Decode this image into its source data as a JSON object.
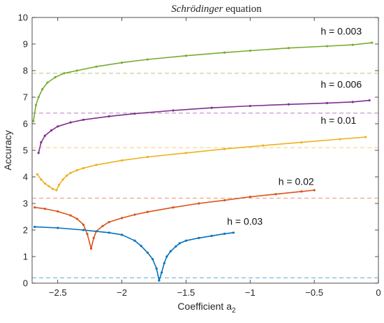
{
  "chart_data": {
    "type": "scatter",
    "title": {
      "italic": "Schrödinger",
      "rest": " equation"
    },
    "xlabel": {
      "main": "Coefficient a",
      "sub": "2"
    },
    "ylabel": "Accuracy",
    "xlim": [
      -2.7,
      0
    ],
    "ylim": [
      0,
      10
    ],
    "xticks": [
      -2.5,
      -2,
      -1.5,
      -1,
      -0.5,
      0
    ],
    "xtick_labels": [
      "−2.5",
      "−2",
      "−1.5",
      "−1",
      "−0.5",
      "0"
    ],
    "yticks": [
      0,
      1,
      2,
      3,
      4,
      5,
      6,
      7,
      8,
      9,
      10
    ],
    "ytick_labels": [
      "0",
      "1",
      "2",
      "3",
      "4",
      "5",
      "6",
      "7",
      "8",
      "9",
      "10"
    ],
    "grid": false,
    "series": [
      {
        "name": "h = 0.003",
        "color": "#77ac30",
        "baseline": 7.9,
        "label_x": -0.45,
        "label_y": 9.35,
        "x": [
          -2.69,
          -2.67,
          -2.65,
          -2.62,
          -2.58,
          -2.52,
          -2.45,
          -2.35,
          -2.2,
          -2.0,
          -1.8,
          -1.5,
          -1.2,
          -1.0,
          -0.7,
          -0.4,
          -0.2,
          -0.05
        ],
        "y": [
          6.1,
          6.7,
          7.0,
          7.3,
          7.55,
          7.75,
          7.9,
          8.0,
          8.15,
          8.3,
          8.42,
          8.56,
          8.68,
          8.75,
          8.85,
          8.92,
          8.97,
          9.05
        ]
      },
      {
        "name": "h = 0.006",
        "color": "#7e2f8e",
        "baseline": 6.4,
        "label_x": -0.45,
        "label_y": 7.35,
        "x": [
          -2.65,
          -2.63,
          -2.6,
          -2.55,
          -2.5,
          -2.4,
          -2.3,
          -2.1,
          -1.9,
          -1.6,
          -1.3,
          -1.0,
          -0.7,
          -0.4,
          -0.2,
          -0.07
        ],
        "y": [
          4.9,
          5.3,
          5.55,
          5.75,
          5.9,
          6.05,
          6.15,
          6.28,
          6.38,
          6.5,
          6.6,
          6.67,
          6.73,
          6.78,
          6.82,
          6.88
        ]
      },
      {
        "name": "h = 0.01",
        "color": "#edb120",
        "baseline": 5.1,
        "label_x": -0.45,
        "label_y": 6.0,
        "x": [
          -2.66,
          -2.63,
          -2.6,
          -2.57,
          -2.54,
          -2.51,
          -2.49,
          -2.46,
          -2.43,
          -2.4,
          -2.35,
          -2.3,
          -2.2,
          -2.0,
          -1.8,
          -1.5,
          -1.2,
          -0.9,
          -0.6,
          -0.3,
          -0.1
        ],
        "y": [
          4.1,
          3.9,
          3.75,
          3.65,
          3.55,
          3.5,
          3.7,
          3.9,
          4.05,
          4.15,
          4.25,
          4.33,
          4.45,
          4.62,
          4.75,
          4.9,
          5.05,
          5.18,
          5.3,
          5.42,
          5.5
        ]
      },
      {
        "name": "h = 0.02",
        "color": "#d95319",
        "baseline": 3.2,
        "label_x": -0.78,
        "label_y": 3.7,
        "x": [
          -2.68,
          -2.6,
          -2.5,
          -2.4,
          -2.35,
          -2.3,
          -2.27,
          -2.24,
          -2.22,
          -2.2,
          -2.15,
          -2.1,
          -2.0,
          -1.9,
          -1.8,
          -1.6,
          -1.4,
          -1.2,
          -1.0,
          -0.8,
          -0.6,
          -0.5
        ],
        "y": [
          2.85,
          2.8,
          2.7,
          2.55,
          2.42,
          2.2,
          1.85,
          1.3,
          1.7,
          1.95,
          2.15,
          2.3,
          2.45,
          2.58,
          2.68,
          2.85,
          3.0,
          3.12,
          3.25,
          3.35,
          3.45,
          3.5
        ]
      },
      {
        "name": "h = 0.03",
        "color": "#0072bd",
        "baseline": 0.2,
        "label_x": -1.18,
        "label_y": 2.2,
        "x": [
          -2.68,
          -2.5,
          -2.3,
          -2.1,
          -2.0,
          -1.9,
          -1.85,
          -1.8,
          -1.76,
          -1.73,
          -1.71,
          -1.69,
          -1.67,
          -1.65,
          -1.62,
          -1.58,
          -1.55,
          -1.5,
          -1.4,
          -1.3,
          -1.2,
          -1.13
        ],
        "y": [
          2.12,
          2.08,
          2.0,
          1.9,
          1.82,
          1.6,
          1.4,
          1.15,
          0.9,
          0.55,
          0.1,
          0.4,
          0.75,
          1.0,
          1.2,
          1.38,
          1.5,
          1.6,
          1.7,
          1.78,
          1.86,
          1.9
        ]
      }
    ]
  }
}
